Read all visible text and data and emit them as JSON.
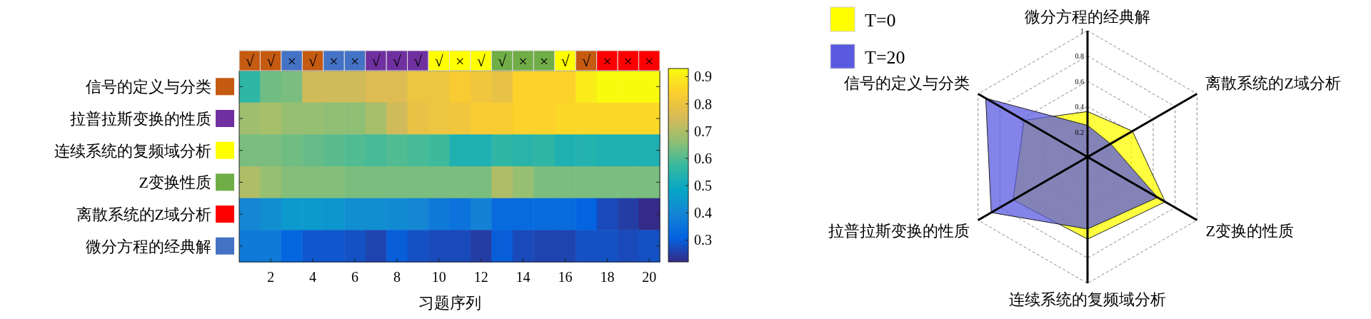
{
  "chart_data": [
    {
      "type": "heatmap",
      "xlabel": "习题序列",
      "x": [
        1,
        2,
        3,
        4,
        5,
        6,
        7,
        8,
        9,
        10,
        11,
        12,
        13,
        14,
        15,
        16,
        17,
        18,
        19,
        20
      ],
      "xlim": [
        0.5,
        20.5
      ],
      "xticks": [
        2,
        4,
        6,
        8,
        10,
        12,
        14,
        16,
        18,
        20
      ],
      "y_categories": [
        "信号的定义与分类",
        "拉普拉斯变换的性质",
        "连续系统的复频域分析",
        "Z变换性质",
        "离散系统的Z域分析",
        "微分方程的经典解"
      ],
      "colors": [
        "#c55a11",
        "#c55a11",
        "#4472c4",
        "#c55a11",
        "#4472c4",
        "#4472c4",
        "#7030a0",
        "#7030a0",
        "#7030a0",
        "#ffff00",
        "#ffff00",
        "#ffff00",
        "#70ad47",
        "#70ad47",
        "#70ad47",
        "#ffff00",
        "#c55a11",
        "#ff0000",
        "#ff0000",
        "#ff0000"
      ],
      "cells": [
        [
          0.56,
          0.63,
          0.64,
          0.74,
          0.74,
          0.74,
          0.76,
          0.76,
          0.8,
          0.8,
          0.83,
          0.81,
          0.79,
          0.85,
          0.85,
          0.85,
          0.9,
          0.93,
          0.93,
          0.93
        ],
        [
          0.68,
          0.69,
          0.67,
          0.67,
          0.66,
          0.66,
          0.69,
          0.74,
          0.79,
          0.8,
          0.81,
          0.83,
          0.83,
          0.85,
          0.85,
          0.86,
          0.86,
          0.86,
          0.86,
          0.86
        ],
        [
          0.64,
          0.64,
          0.63,
          0.62,
          0.61,
          0.6,
          0.59,
          0.6,
          0.59,
          0.58,
          0.53,
          0.53,
          0.56,
          0.55,
          0.56,
          0.53,
          0.54,
          0.53,
          0.53,
          0.53
        ],
        [
          0.7,
          0.67,
          0.65,
          0.65,
          0.65,
          0.64,
          0.64,
          0.64,
          0.64,
          0.64,
          0.64,
          0.64,
          0.7,
          0.67,
          0.64,
          0.64,
          0.64,
          0.64,
          0.64,
          0.64
        ],
        [
          0.4,
          0.42,
          0.45,
          0.45,
          0.44,
          0.42,
          0.42,
          0.41,
          0.4,
          0.37,
          0.35,
          0.39,
          0.33,
          0.33,
          0.33,
          0.33,
          0.31,
          0.27,
          0.25,
          0.22
        ],
        [
          0.37,
          0.37,
          0.32,
          0.29,
          0.29,
          0.28,
          0.26,
          0.3,
          0.28,
          0.27,
          0.27,
          0.25,
          0.3,
          0.27,
          0.26,
          0.26,
          0.28,
          0.28,
          0.27,
          0.28
        ]
      ],
      "clim": [
        0.22,
        0.93
      ],
      "cticks": [
        0.3,
        0.4,
        0.5,
        0.6,
        0.7,
        0.8,
        0.9
      ],
      "annotations": [
        "√",
        "√",
        "×",
        "√",
        "×",
        "×",
        "√",
        "√",
        "√",
        "√",
        "×",
        "√",
        "√",
        "×",
        "×",
        "√",
        "√",
        "×",
        "×",
        "×"
      ]
    },
    {
      "type": "radar",
      "categories": [
        "微分方程的经典解",
        "离散系统的Z域分析",
        "Z变换的性质",
        "连续系统的复频域分析",
        "拉普拉斯变换的性质",
        "信号的定义与分类"
      ],
      "ylim": [
        0,
        1
      ],
      "yticks": [
        0.2,
        0.4,
        0.6,
        0.8,
        1
      ],
      "grid": true,
      "legend": "top left",
      "series": [
        {
          "name": "T=0",
          "color": "#ffff00",
          "values": [
            0.36,
            0.41,
            0.71,
            0.65,
            0.68,
            0.58
          ]
        },
        {
          "name": "T=20",
          "color": "#5a5ae0",
          "values": [
            0.25,
            0.21,
            0.64,
            0.57,
            0.88,
            0.93
          ]
        }
      ]
    }
  ]
}
